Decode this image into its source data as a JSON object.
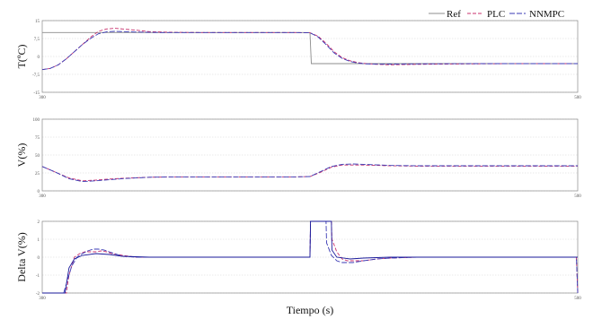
{
  "chart_data": [
    {
      "type": "line",
      "ylabel": "T(ºC)",
      "ylim": [
        -15,
        15
      ],
      "yticks": [
        15,
        7.5,
        0,
        -7.5,
        -15
      ],
      "yticklabels": [
        "15",
        "7,5",
        "0",
        "-7,5",
        "-15"
      ],
      "xlim": [
        300,
        500
      ],
      "xticklabels": [
        "300",
        "500"
      ],
      "grid": true,
      "series": [
        {
          "name": "Ref",
          "color": "#8c8c8c",
          "dash": "solid",
          "x": [
            300,
            300.5,
            400,
            400.5,
            500
          ],
          "y": [
            10,
            10,
            10,
            -3,
            -3
          ]
        },
        {
          "name": "PLC",
          "color": "#c8326e",
          "dash": "4,2",
          "x": [
            300,
            303,
            306,
            309,
            312,
            315,
            318,
            321,
            324,
            327,
            330,
            335,
            340,
            345,
            350,
            360,
            380,
            395,
            400,
            403,
            406,
            409,
            412,
            415,
            418,
            421,
            425,
            430,
            440,
            460,
            480,
            500
          ],
          "y": [
            -5.5,
            -5,
            -3.5,
            -1,
            2,
            5,
            8,
            10.5,
            11.5,
            11.8,
            11.5,
            11,
            10.4,
            10.2,
            10.1,
            10,
            10,
            10,
            9.9,
            8.5,
            5.5,
            2,
            -0.5,
            -1.8,
            -2.6,
            -3,
            -3.3,
            -3.5,
            -3.3,
            -3.1,
            -3,
            -3
          ]
        },
        {
          "name": "NNMPC",
          "color": "#3a3ab4",
          "dash": "6,2",
          "x": [
            300,
            303,
            306,
            309,
            312,
            315,
            318,
            321,
            324,
            327,
            330,
            335,
            340,
            345,
            350,
            360,
            380,
            395,
            400,
            403,
            406,
            409,
            412,
            415,
            418,
            421,
            425,
            430,
            440,
            460,
            480,
            500
          ],
          "y": [
            -5.5,
            -5,
            -3.5,
            -1,
            2,
            5,
            7.5,
            9.5,
            10.3,
            10.5,
            10.4,
            10.2,
            10.1,
            10,
            10,
            10,
            10,
            10,
            9.9,
            8.2,
            5,
            1.5,
            -0.8,
            -2.1,
            -2.8,
            -3.1,
            -3.2,
            -3.2,
            -3.1,
            -3,
            -3,
            -3
          ]
        }
      ]
    },
    {
      "type": "line",
      "ylabel": "V(%)",
      "ylim": [
        0,
        100
      ],
      "yticks": [
        100,
        75,
        50,
        25,
        0
      ],
      "yticklabels": [
        "100",
        "75",
        "50",
        "25",
        "0"
      ],
      "xlim": [
        300,
        500
      ],
      "xticklabels": [
        "300",
        "500"
      ],
      "grid": true,
      "series": [
        {
          "name": "PLC",
          "color": "#c8326e",
          "dash": "4,2",
          "x": [
            300,
            305,
            310,
            315,
            320,
            325,
            330,
            340,
            350,
            360,
            380,
            395,
            400,
            404,
            408,
            412,
            416,
            420,
            430,
            440,
            460,
            480,
            500
          ],
          "y": [
            34,
            26,
            18,
            14,
            15,
            16.5,
            17.5,
            19,
            19.5,
            19.5,
            19.5,
            19.5,
            20,
            26,
            33,
            36,
            36,
            36,
            35,
            34.5,
            34.5,
            34.5,
            34.5
          ]
        },
        {
          "name": "NNMPC",
          "color": "#3a3ab4",
          "dash": "6,2",
          "x": [
            300,
            305,
            310,
            315,
            320,
            325,
            330,
            340,
            350,
            360,
            380,
            395,
            400,
            404,
            408,
            412,
            416,
            420,
            430,
            440,
            460,
            480,
            500
          ],
          "y": [
            34,
            26,
            17,
            13,
            14,
            15.5,
            17,
            19,
            19.5,
            19.5,
            19.5,
            19.5,
            20,
            27,
            34,
            37,
            37.5,
            37,
            35.5,
            35,
            35,
            35,
            35
          ]
        }
      ]
    },
    {
      "type": "line",
      "ylabel": "Delta V(%)",
      "ylim": [
        -2,
        2
      ],
      "yticks": [
        2,
        1,
        0,
        -1,
        -2
      ],
      "yticklabels": [
        "2",
        "1",
        "0",
        "-1",
        "-2"
      ],
      "xlim": [
        300,
        500
      ],
      "xticklabels": [
        "300",
        "500"
      ],
      "xlabel": "Tiempo (s)",
      "grid": true,
      "series": [
        {
          "name": "PLC",
          "color": "#c8326e",
          "dash": "4,2",
          "x": [
            300,
            309,
            310,
            312,
            314,
            316,
            318,
            320,
            322,
            324,
            326,
            330,
            335,
            340,
            345,
            350,
            360,
            380,
            400,
            400.2,
            408,
            408.2,
            410,
            412,
            414,
            416,
            418,
            420,
            425,
            430,
            440,
            460,
            480,
            499.5,
            500
          ],
          "y": [
            -2,
            -2,
            -1,
            0,
            0.2,
            0.3,
            0.3,
            0.3,
            0.35,
            0.3,
            0.2,
            0.1,
            0,
            0,
            0,
            0,
            0,
            0,
            0,
            2,
            2,
            1,
            0.3,
            -0.1,
            -0.2,
            -0.2,
            -0.2,
            -0.2,
            -0.1,
            -0.05,
            0,
            0,
            0,
            0,
            -2
          ]
        },
        {
          "name": "NNMPC",
          "color": "#3a3ab4",
          "dash": "6,2",
          "x": [
            300,
            308,
            309,
            311,
            313,
            315,
            317,
            319,
            321,
            323,
            325,
            327,
            330,
            335,
            340,
            345,
            350,
            360,
            380,
            400,
            400.2,
            406,
            406.2,
            408,
            410,
            412,
            414,
            416,
            418,
            420,
            425,
            430,
            440,
            460,
            480,
            499.5,
            500
          ],
          "y": [
            -2,
            -2,
            -1.5,
            -0.5,
            0,
            0.2,
            0.35,
            0.45,
            0.45,
            0.4,
            0.3,
            0.2,
            0.05,
            0,
            0,
            0,
            0,
            0,
            0,
            0,
            2,
            2,
            0.8,
            0.1,
            -0.2,
            -0.3,
            -0.3,
            -0.3,
            -0.25,
            -0.2,
            -0.1,
            -0.05,
            0,
            0,
            0,
            0,
            -2
          ]
        },
        {
          "name": "",
          "color": "#1a1a9a",
          "dash": "solid",
          "x": [
            300,
            308.5,
            310,
            312,
            315,
            320,
            325,
            330,
            340,
            400,
            400.2,
            408,
            408.2,
            410,
            415,
            420,
            430,
            450,
            500
          ],
          "y": [
            -2,
            -2,
            -0.6,
            -0.1,
            0.1,
            0.2,
            0.15,
            0.05,
            0,
            0,
            2,
            2,
            0.4,
            0,
            -0.1,
            -0.05,
            0,
            0,
            0
          ]
        }
      ]
    }
  ],
  "legend": {
    "position": "top-right",
    "entries": [
      {
        "label": "Ref",
        "color": "#8c8c8c",
        "dash": "solid"
      },
      {
        "label": "PLC",
        "color": "#c8326e",
        "dash": "4,2"
      },
      {
        "label": "NNMPC",
        "color": "#3a3ab4",
        "dash": "6,2"
      }
    ]
  }
}
